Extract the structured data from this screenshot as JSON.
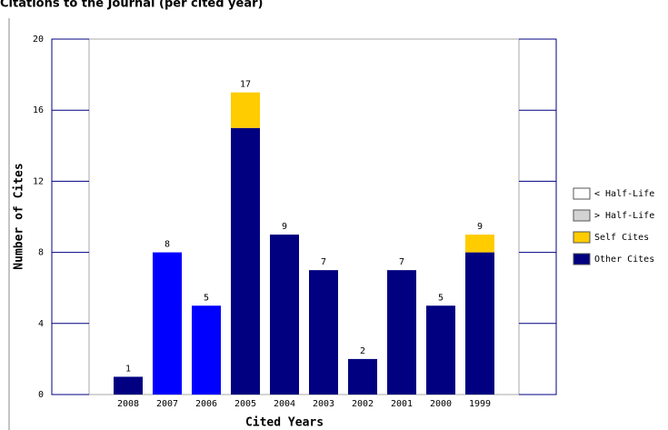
{
  "chart_data": {
    "type": "stacked_bar",
    "title": "Citations to the Journal (per cited year)",
    "x_label": "Cited Years",
    "y_label": "Number of Cites",
    "categories": [
      "2008",
      "2007",
      "2006",
      "2005",
      "2004",
      "2003",
      "2002",
      "2001",
      "2000",
      "1999"
    ],
    "series": [
      {
        "name": "< Half-Life",
        "color": "#ffffff",
        "values": [
          null,
          null,
          null,
          null,
          null,
          null,
          null,
          null,
          null,
          null
        ]
      },
      {
        "name": "> Half-Life",
        "color": "#d3d3d3",
        "values": [
          null,
          null,
          null,
          null,
          null,
          null,
          null,
          null,
          null,
          null
        ]
      },
      {
        "name": "Other Cites",
        "color": "#000080",
        "bar_colors": [
          "#000080",
          "#0000ff",
          "#0000ff",
          "#000080",
          "#000080",
          "#000080",
          "#000080",
          "#000080",
          "#000080",
          "#000080"
        ],
        "values": [
          1,
          8,
          5,
          15,
          9,
          7,
          2,
          7,
          5,
          8
        ]
      },
      {
        "name": "Self Cites",
        "color": "#ffcc00",
        "values": [
          0,
          0,
          0,
          2,
          0,
          0,
          0,
          0,
          0,
          1
        ]
      }
    ],
    "totals": [
      1,
      8,
      5,
      17,
      9,
      7,
      2,
      7,
      5,
      9
    ],
    "ylim": [
      0,
      20
    ],
    "yticks": [
      0,
      4,
      8,
      12,
      16,
      20
    ]
  }
}
